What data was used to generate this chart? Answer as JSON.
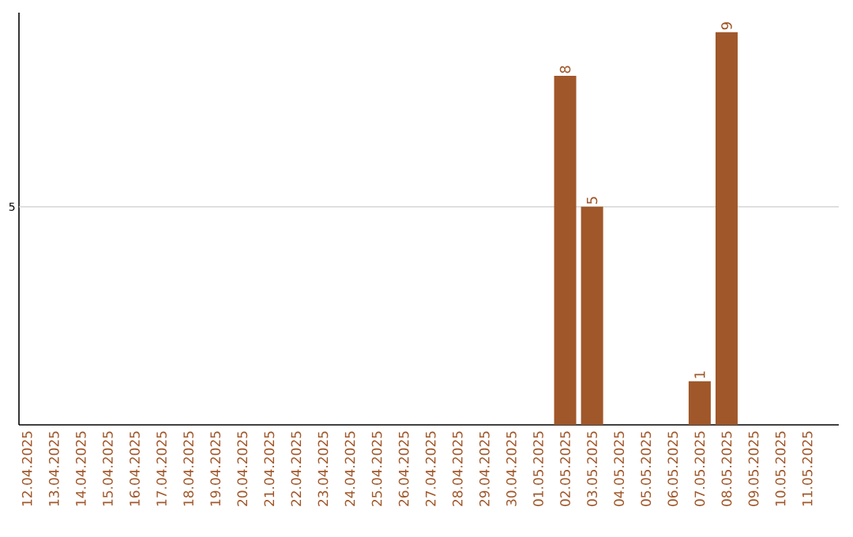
{
  "chart_data": {
    "type": "bar",
    "categories": [
      "12.04.2025",
      "13.04.2025",
      "14.04.2025",
      "15.04.2025",
      "16.04.2025",
      "17.04.2025",
      "18.04.2025",
      "19.04.2025",
      "20.04.2025",
      "21.04.2025",
      "22.04.2025",
      "23.04.2025",
      "24.04.2025",
      "25.04.2025",
      "26.04.2025",
      "27.04.2025",
      "28.04.2025",
      "29.04.2025",
      "30.04.2025",
      "01.05.2025",
      "02.05.2025",
      "03.05.2025",
      "04.05.2025",
      "05.05.2025",
      "06.05.2025",
      "07.05.2025",
      "08.05.2025",
      "09.05.2025",
      "10.05.2025",
      "11.05.2025"
    ],
    "values": [
      null,
      null,
      null,
      null,
      null,
      null,
      null,
      null,
      null,
      null,
      null,
      null,
      null,
      null,
      null,
      null,
      null,
      null,
      null,
      null,
      8,
      5,
      null,
      null,
      null,
      1,
      9,
      null,
      null,
      null
    ],
    "data_labels": true,
    "color": "#a0572a",
    "ylim": [
      0,
      9.45
    ],
    "ref_lines": [
      {
        "axis": "y",
        "value": 5,
        "label": "5",
        "color": "#cccccc"
      }
    ]
  }
}
